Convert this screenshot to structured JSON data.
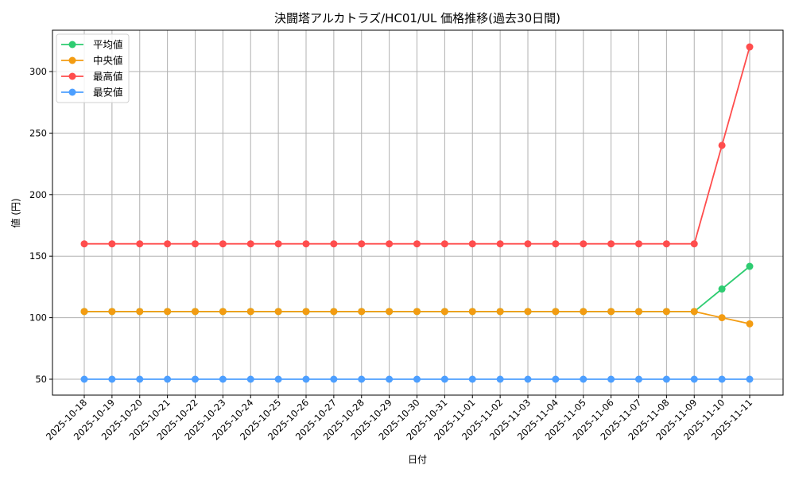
{
  "chart_data": {
    "type": "line",
    "title": "決闘塔アルカトラズ/HC01/UL 価格推移(過去30日間)",
    "xlabel": "日付",
    "ylabel": "値 (円)",
    "ylim": [
      37,
      333
    ],
    "yticks": [
      50,
      100,
      150,
      200,
      250,
      300
    ],
    "grid": true,
    "legend_position": "upper left",
    "x": [
      "2025-10-18",
      "2025-10-19",
      "2025-10-20",
      "2025-10-21",
      "2025-10-22",
      "2025-10-23",
      "2025-10-24",
      "2025-10-25",
      "2025-10-26",
      "2025-10-27",
      "2025-10-28",
      "2025-10-29",
      "2025-10-30",
      "2025-10-31",
      "2025-11-01",
      "2025-11-02",
      "2025-11-03",
      "2025-11-04",
      "2025-11-05",
      "2025-11-06",
      "2025-11-07",
      "2025-11-08",
      "2025-11-09",
      "2025-11-10",
      "2025-11-11"
    ],
    "series": [
      {
        "name": "平均値",
        "color": "#2ecc71",
        "values": [
          105,
          105,
          105,
          105,
          105,
          105,
          105,
          105,
          105,
          105,
          105,
          105,
          105,
          105,
          105,
          105,
          105,
          105,
          105,
          105,
          105,
          105,
          105,
          123.3,
          141.7
        ]
      },
      {
        "name": "中央値",
        "color": "#f39c12",
        "values": [
          105,
          105,
          105,
          105,
          105,
          105,
          105,
          105,
          105,
          105,
          105,
          105,
          105,
          105,
          105,
          105,
          105,
          105,
          105,
          105,
          105,
          105,
          105,
          100,
          95
        ]
      },
      {
        "name": "最高値",
        "color": "#ff4d4d",
        "values": [
          160,
          160,
          160,
          160,
          160,
          160,
          160,
          160,
          160,
          160,
          160,
          160,
          160,
          160,
          160,
          160,
          160,
          160,
          160,
          160,
          160,
          160,
          160,
          240,
          320
        ]
      },
      {
        "name": "最安値",
        "color": "#4d9fff",
        "values": [
          50,
          50,
          50,
          50,
          50,
          50,
          50,
          50,
          50,
          50,
          50,
          50,
          50,
          50,
          50,
          50,
          50,
          50,
          50,
          50,
          50,
          50,
          50,
          50,
          50
        ]
      }
    ]
  }
}
